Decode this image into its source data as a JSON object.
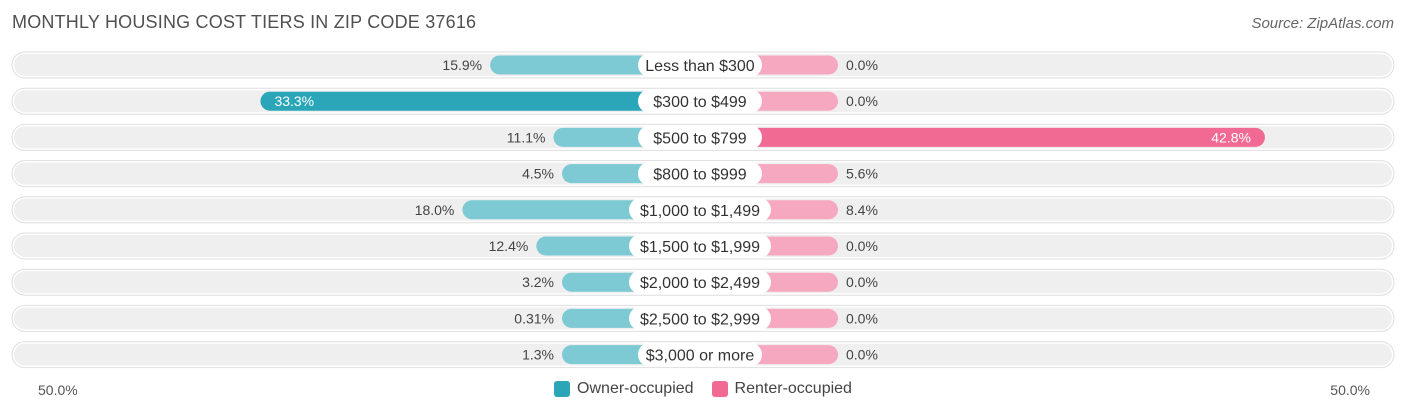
{
  "title": "MONTHLY HOUSING COST TIERS IN ZIP CODE 37616",
  "source": "Source: ZipAtlas.com",
  "colors": {
    "owner": "#2aa6b8",
    "owner_light": "#7dcad4",
    "renter": "#f06a93",
    "renter_light": "#f6a8c0",
    "row_bg": "#efefef"
  },
  "chart_data": {
    "type": "bar",
    "orientation": "diverging-horizontal",
    "categories": [
      "Less than $300",
      "$300 to $499",
      "$500 to $799",
      "$800 to $999",
      "$1,000 to $1,499",
      "$1,500 to $1,999",
      "$2,000 to $2,499",
      "$2,500 to $2,999",
      "$3,000 or more"
    ],
    "series": [
      {
        "name": "Owner-occupied",
        "values": [
          15.9,
          33.3,
          11.1,
          4.5,
          18.0,
          12.4,
          3.2,
          0.31,
          1.3
        ],
        "labels": [
          "15.9%",
          "33.3%",
          "11.1%",
          "4.5%",
          "18.0%",
          "12.4%",
          "3.2%",
          "0.31%",
          "1.3%"
        ]
      },
      {
        "name": "Renter-occupied",
        "values": [
          0.0,
          0.0,
          42.8,
          5.6,
          8.4,
          0.0,
          0.0,
          0.0,
          0.0
        ],
        "labels": [
          "0.0%",
          "0.0%",
          "42.8%",
          "5.6%",
          "8.4%",
          "0.0%",
          "0.0%",
          "0.0%",
          "0.0%"
        ]
      }
    ],
    "xlim": [
      -50,
      50
    ],
    "axis_labels": {
      "left": "50.0%",
      "right": "50.0%"
    },
    "legend_position": "bottom-center"
  }
}
